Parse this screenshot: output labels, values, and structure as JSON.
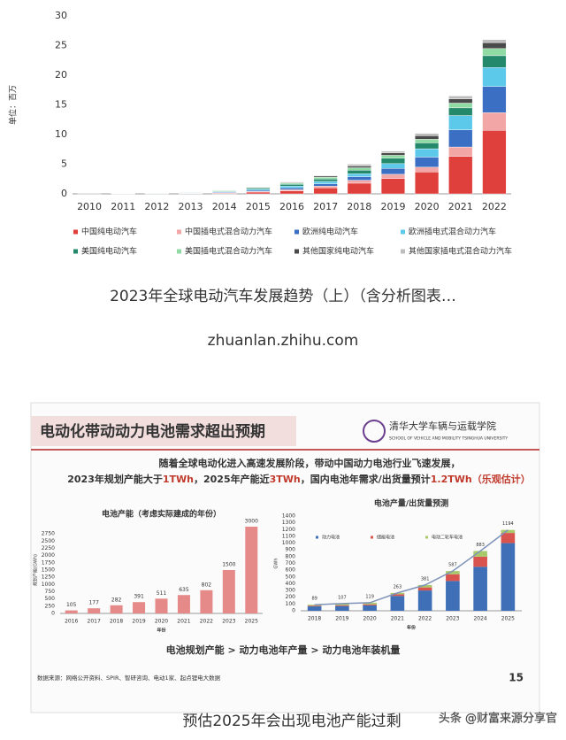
{
  "chart_data": [
    {
      "type": "bar",
      "stacked": true,
      "ylabel": "单位：百万",
      "categories": [
        "2010",
        "2011",
        "2012",
        "2013",
        "2014",
        "2015",
        "2016",
        "2017",
        "2018",
        "2019",
        "2020",
        "2021",
        "2022"
      ],
      "series": [
        {
          "name": "中国纯电动汽车",
          "color": "#e0403c",
          "values": [
            0,
            0.01,
            0.02,
            0.05,
            0.1,
            0.3,
            0.5,
            1.0,
            1.8,
            2.6,
            3.7,
            6.3,
            10.7
          ]
        },
        {
          "name": "中国插电式混合动力汽车",
          "color": "#f2a6a6",
          "values": [
            0,
            0,
            0.01,
            0.02,
            0.05,
            0.1,
            0.2,
            0.3,
            0.5,
            0.7,
            0.8,
            1.6,
            3.0
          ]
        },
        {
          "name": "欧洲纯电动汽车",
          "color": "#3a6fc4",
          "values": [
            0,
            0.01,
            0.02,
            0.05,
            0.1,
            0.2,
            0.3,
            0.4,
            0.6,
            1.0,
            1.7,
            2.9,
            4.4
          ]
        },
        {
          "name": "欧洲插电式混合动力汽车",
          "color": "#5cc8ea",
          "values": [
            0,
            0,
            0.01,
            0.05,
            0.1,
            0.2,
            0.3,
            0.4,
            0.5,
            0.8,
            1.4,
            2.4,
            3.2
          ]
        },
        {
          "name": "美国纯电动汽车",
          "color": "#24886a",
          "values": [
            0.01,
            0.02,
            0.03,
            0.07,
            0.1,
            0.2,
            0.3,
            0.4,
            0.6,
            0.9,
            1.0,
            1.3,
            2.0
          ]
        },
        {
          "name": "美国插电式混合动力汽车",
          "color": "#90daa4",
          "values": [
            0,
            0.01,
            0.01,
            0.04,
            0.1,
            0.1,
            0.2,
            0.3,
            0.4,
            0.5,
            0.6,
            0.8,
            1.2
          ]
        },
        {
          "name": "其他国家纯电动汽车",
          "color": "#4a4a4a",
          "values": [
            0,
            0,
            0,
            0.01,
            0.03,
            0.05,
            0.1,
            0.2,
            0.3,
            0.4,
            0.6,
            0.7,
            1.0
          ]
        },
        {
          "name": "其他国家插电式混合动力汽车",
          "color": "#bdbdbd",
          "values": [
            0,
            0,
            0,
            0.01,
            0.02,
            0.05,
            0.1,
            0.1,
            0.3,
            0.3,
            0.4,
            0.5,
            0.5
          ]
        }
      ],
      "ylim": [
        0,
        30
      ],
      "yticks": [
        0,
        5,
        10,
        15,
        20,
        25,
        30
      ],
      "grid": false
    },
    {
      "type": "bar",
      "title": "电池产能（考虑实际建成的年份）",
      "ylabel": "规划产能(GWh)",
      "xlabel": "年份",
      "categories": [
        "2016",
        "2017",
        "2018",
        "2019",
        "2020",
        "2021",
        "2022",
        "2023",
        "2025"
      ],
      "values": [
        105,
        177,
        282,
        391,
        511,
        635,
        802,
        1500,
        3000
      ],
      "color": "#e58a88",
      "ylim": [
        0,
        3000
      ],
      "yticks": [
        0,
        250,
        500,
        750,
        1000,
        1250,
        1500,
        1750,
        2000,
        2250,
        2500,
        2750
      ],
      "grid": false
    },
    {
      "type": "bar",
      "stacked": true,
      "title": "电池产量/出货量预测",
      "ylabel": "GWh",
      "xlabel": "年份",
      "categories": [
        "2018",
        "2019",
        "2020",
        "2021",
        "2022",
        "2023",
        "2024",
        "2025"
      ],
      "series": [
        {
          "name": "动力电池",
          "color": "#3f6fb6",
          "values": [
            65,
            70,
            80,
            220,
            300,
            440,
            650,
            1000
          ]
        },
        {
          "name": "储能电池",
          "color": "#d9534f",
          "values": [
            10,
            12,
            15,
            25,
            45,
            100,
            150,
            150
          ]
        },
        {
          "name": "电动二轮车电池",
          "color": "#a8c96a",
          "values": [
            14,
            25,
            24,
            18,
            36,
            47,
            83,
            44
          ]
        }
      ],
      "line": {
        "color": "#7f93b8",
        "values": [
          89,
          107,
          119,
          263,
          381,
          587,
          883,
          1194
        ]
      },
      "ylim": [
        0,
        1400
      ],
      "yticks": [
        0,
        100,
        200,
        300,
        400,
        500,
        600,
        700,
        800,
        900,
        1000,
        1100,
        1200,
        1300,
        1400
      ],
      "grid": false
    }
  ],
  "captions": {
    "first": "2023年全球电动汽车发展趋势（上）（含分析图表…",
    "source_url": "zhuanlan.zhihu.com",
    "second": "预估2025年会出现电池产能过剩"
  },
  "watermark": "头条 @财富来源分享官",
  "slide": {
    "title": "电动化带动动力电池需求超出预期",
    "logo_name": "清华大学车辆与运载学院",
    "logo_en": "SCHOOL OF VEHICLE AND MOBILITY TSINGHUA UNIVERSITY",
    "intro": "随着全球电动化进入高速发展阶段，带动中国动力电池行业飞速发展，",
    "line2": [
      "2023年规划产能大于",
      "1TWh",
      "，2025年产能近",
      "3TWh",
      "，国内电池年需求/出货量预计",
      "1.2TWh（乐观估计）"
    ],
    "flow": "电池规划产能 > 动力电池年产量 > 动力电池年装机量",
    "source": "数据来源：网络公开资料、SPIR、智研咨询、电动1家、起点锂电大数据",
    "page": "15"
  }
}
